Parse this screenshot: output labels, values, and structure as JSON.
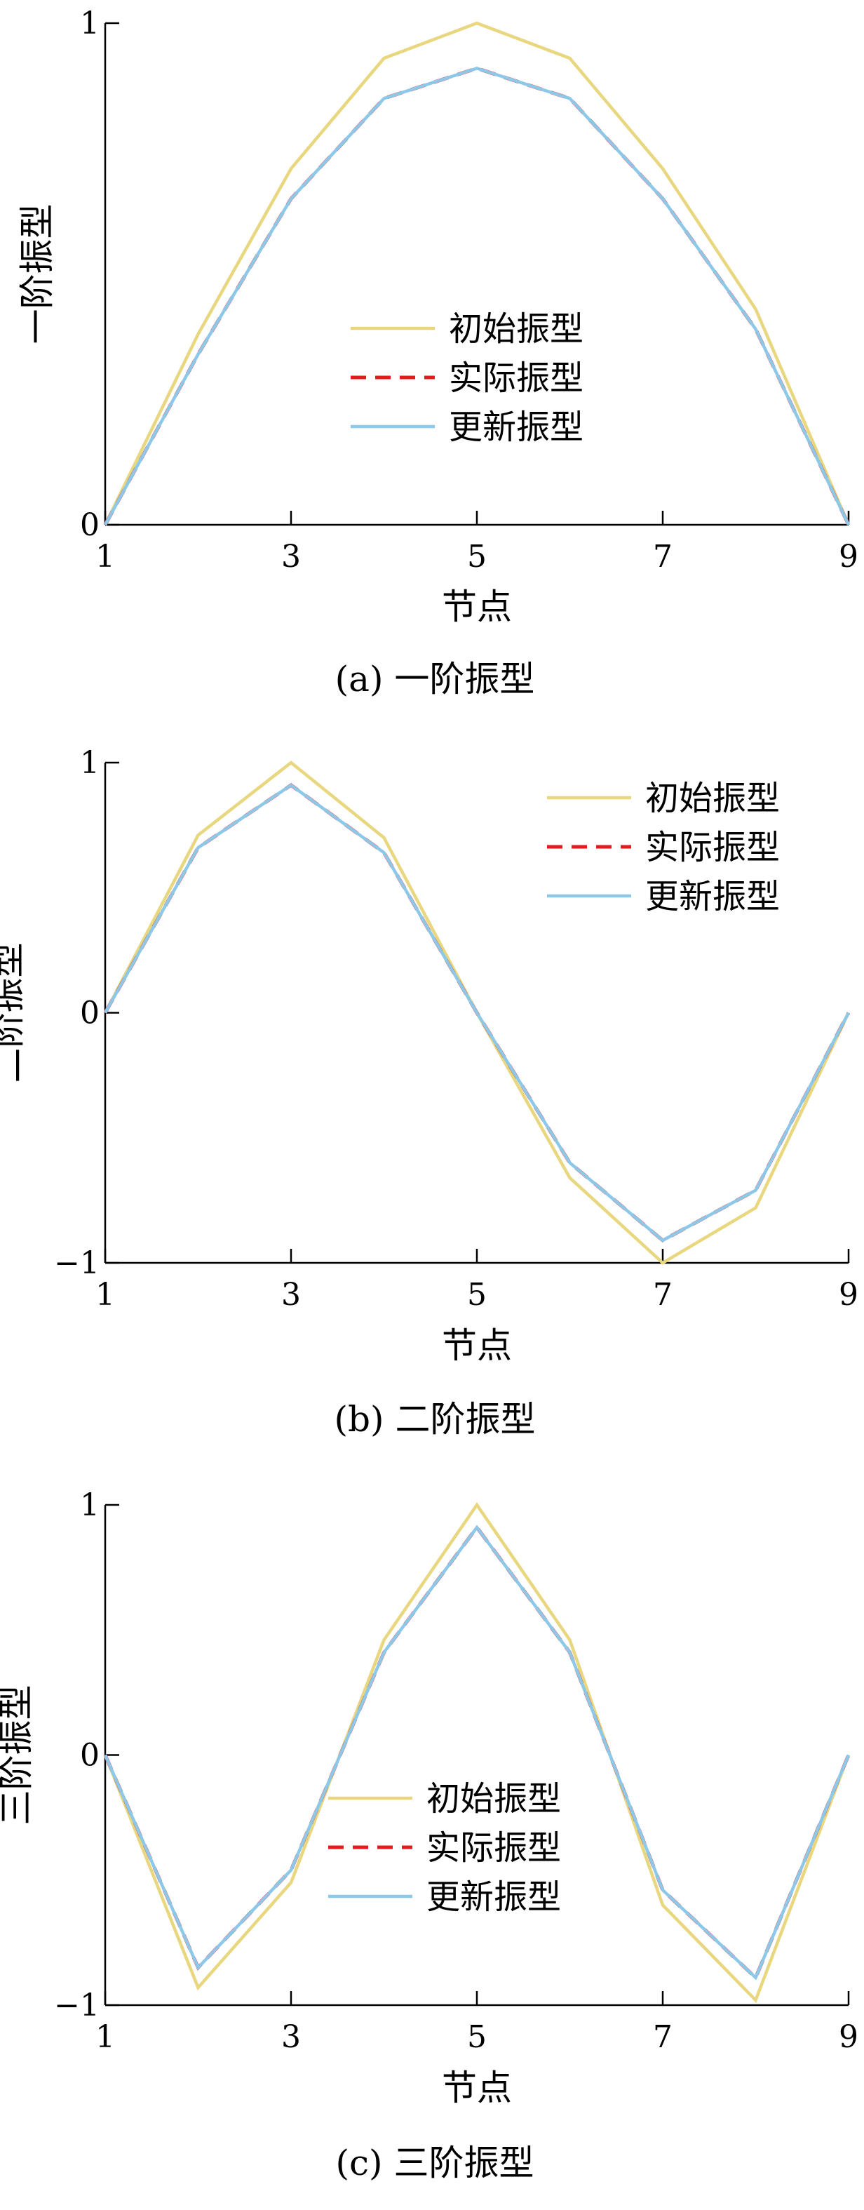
{
  "chart_data": [
    {
      "type": "line",
      "caption": "(a)  一阶振型",
      "xlabel": "节点",
      "ylabel": "一阶振型",
      "x": [
        1,
        2,
        3,
        4,
        5,
        6,
        7,
        8,
        9
      ],
      "xticks": [
        1,
        3,
        5,
        7,
        9
      ],
      "yticks": [
        0,
        1
      ],
      "ytick_labels": [
        "0",
        "1"
      ],
      "xlim": [
        1,
        9
      ],
      "ylim": [
        0,
        1
      ],
      "legend_position": "center",
      "series": [
        {
          "name": "初始振型",
          "color": "#e8d77e",
          "dash": "solid",
          "values": [
            0,
            0.38,
            0.71,
            0.93,
            1.0,
            0.93,
            0.71,
            0.43,
            0
          ]
        },
        {
          "name": "实际振型",
          "color": "#e41a1c",
          "dash": "dashed",
          "values": [
            0,
            0.34,
            0.65,
            0.85,
            0.91,
            0.85,
            0.65,
            0.39,
            0
          ]
        },
        {
          "name": "更新振型",
          "color": "#8ec8e8",
          "dash": "solid",
          "values": [
            0,
            0.34,
            0.65,
            0.85,
            0.91,
            0.85,
            0.65,
            0.39,
            0
          ]
        }
      ]
    },
    {
      "type": "line",
      "caption": "(b)  二阶振型",
      "xlabel": "节点",
      "ylabel": "二阶振型",
      "x": [
        1,
        2,
        3,
        4,
        5,
        6,
        7,
        8,
        9
      ],
      "xticks": [
        1,
        3,
        5,
        7,
        9
      ],
      "yticks": [
        -1,
        0,
        1
      ],
      "ytick_labels": [
        "−1",
        "0",
        "1"
      ],
      "xlim": [
        1,
        9
      ],
      "ylim": [
        -1,
        1
      ],
      "legend_position": "top-right",
      "series": [
        {
          "name": "初始振型",
          "color": "#e8d77e",
          "dash": "solid",
          "values": [
            0,
            0.71,
            1.0,
            0.7,
            0,
            -0.66,
            -1.0,
            -0.78,
            0
          ]
        },
        {
          "name": "实际振型",
          "color": "#e41a1c",
          "dash": "dashed",
          "values": [
            0,
            0.66,
            0.91,
            0.64,
            0,
            -0.6,
            -0.91,
            -0.71,
            0
          ]
        },
        {
          "name": "更新振型",
          "color": "#8ec8e8",
          "dash": "solid",
          "values": [
            0,
            0.66,
            0.91,
            0.64,
            0,
            -0.6,
            -0.91,
            -0.71,
            0
          ]
        }
      ]
    },
    {
      "type": "line",
      "caption": "(c)  三阶振型",
      "xlabel": "节点",
      "ylabel": "三阶振型",
      "x": [
        1,
        2,
        3,
        4,
        5,
        6,
        7,
        8,
        9
      ],
      "xticks": [
        1,
        3,
        5,
        7,
        9
      ],
      "yticks": [
        -1,
        0,
        1
      ],
      "ytick_labels": [
        "−1",
        "0",
        "1"
      ],
      "xlim": [
        1,
        9
      ],
      "ylim": [
        -1,
        1
      ],
      "legend_position": "bottom-center",
      "series": [
        {
          "name": "初始振型",
          "color": "#e8d77e",
          "dash": "solid",
          "values": [
            0,
            -0.93,
            -0.51,
            0.46,
            1.0,
            0.46,
            -0.6,
            -0.98,
            0
          ]
        },
        {
          "name": "实际振型",
          "color": "#e41a1c",
          "dash": "dashed",
          "values": [
            0,
            -0.85,
            -0.46,
            0.41,
            0.91,
            0.41,
            -0.54,
            -0.89,
            0
          ]
        },
        {
          "name": "更新振型",
          "color": "#8ec8e8",
          "dash": "solid",
          "values": [
            0,
            -0.85,
            -0.46,
            0.41,
            0.91,
            0.41,
            -0.54,
            -0.89,
            0
          ]
        }
      ]
    }
  ]
}
